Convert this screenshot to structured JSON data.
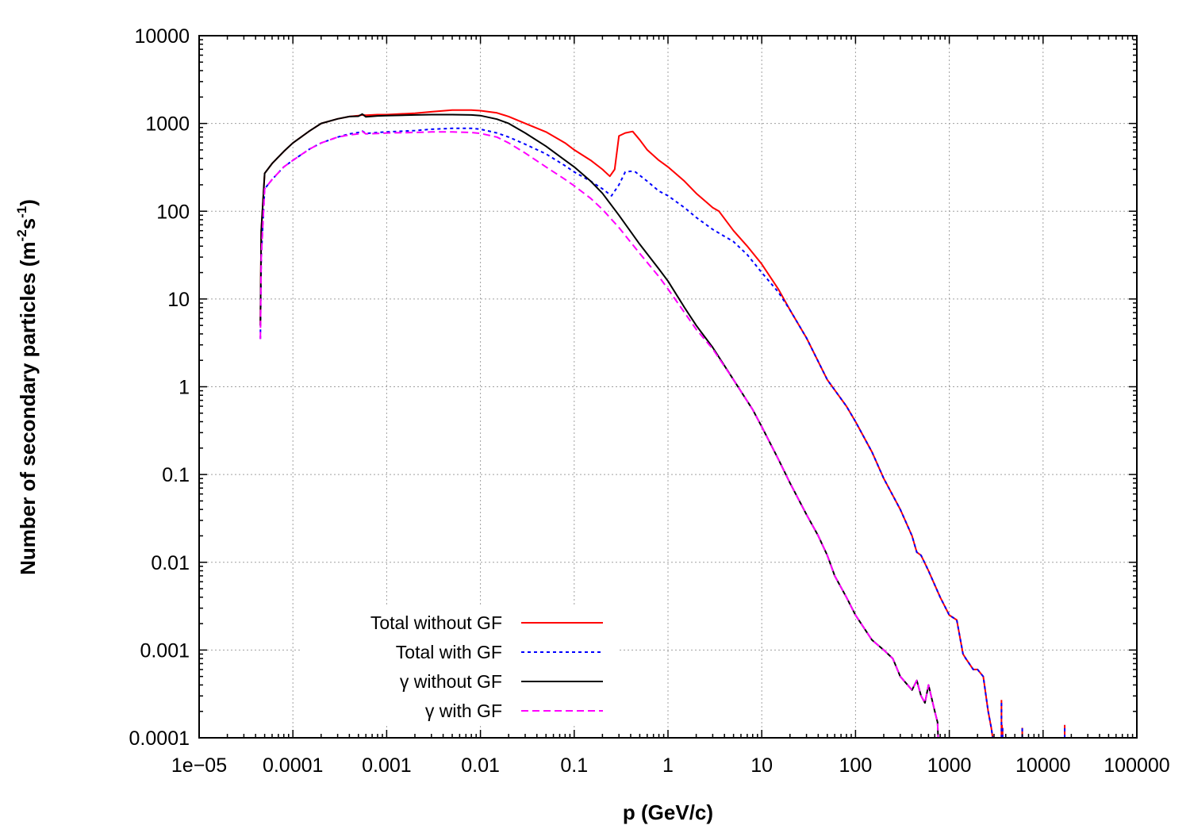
{
  "chart_data": {
    "type": "line",
    "xlabel": "p (GeV/c)",
    "ylabel": "Number of secondary particles",
    "ylabel_unit_parts": [
      " (m",
      "-2",
      "s",
      "-1",
      ")"
    ],
    "x_scale": "log",
    "y_scale": "log",
    "xlim": [
      1e-05,
      100000
    ],
    "ylim": [
      0.0001,
      10000
    ],
    "x_ticks": [
      1e-05,
      0.0001,
      0.001,
      0.01,
      0.1,
      1,
      10,
      100,
      1000,
      10000,
      100000
    ],
    "x_tick_labels": [
      "1e−05",
      "0.0001",
      "0.001",
      "0.01",
      "0.1",
      "1",
      "10",
      "100",
      "1000",
      "10000",
      "100000"
    ],
    "y_ticks": [
      0.0001,
      0.001,
      0.01,
      0.1,
      1,
      10,
      100,
      1000,
      10000
    ],
    "y_tick_labels": [
      "0.0001",
      "0.001",
      "0.01",
      "0.1",
      "1",
      "10",
      "100",
      "1000",
      "10000"
    ],
    "grid": true,
    "legend_position": "bottom-left",
    "series": [
      {
        "name": "Total without GF",
        "color": "#ff0000",
        "dash": "solid",
        "x": [
          4.5e-05,
          4.6e-05,
          5e-05,
          6e-05,
          8e-05,
          0.0001,
          0.00015,
          0.0002,
          0.0003,
          0.0004,
          0.0005,
          0.00055,
          0.0006,
          0.0008,
          0.001,
          0.002,
          0.003,
          0.005,
          0.008,
          0.01,
          0.015,
          0.02,
          0.03,
          0.05,
          0.08,
          0.1,
          0.15,
          0.2,
          0.24,
          0.27,
          0.3,
          0.35,
          0.42,
          0.5,
          0.6,
          0.8,
          1,
          1.5,
          2,
          3,
          3.5,
          5,
          7,
          10,
          15,
          20,
          30,
          50,
          80,
          100,
          150,
          200,
          300,
          400,
          450,
          500,
          600,
          800,
          1000,
          1200,
          1400,
          1500,
          1800,
          2000,
          2300,
          2600,
          2800,
          2900
        ],
        "y": [
          5,
          60,
          270,
          350,
          480,
          600,
          820,
          1000,
          1130,
          1200,
          1230,
          1250,
          1240,
          1260,
          1260,
          1310,
          1360,
          1420,
          1420,
          1400,
          1320,
          1200,
          1000,
          800,
          600,
          500,
          380,
          300,
          250,
          300,
          720,
          780,
          810,
          650,
          500,
          380,
          320,
          220,
          160,
          110,
          100,
          60,
          40,
          25,
          13,
          7.5,
          3.6,
          1.2,
          0.6,
          0.4,
          0.18,
          0.09,
          0.04,
          0.02,
          0.013,
          0.012,
          0.008,
          0.004,
          0.0025,
          0.0022,
          0.0009,
          0.0008,
          0.0006,
          0.0006,
          0.0005,
          0.0002,
          0.00013,
          0.0001
        ]
      },
      {
        "name": "Total with GF",
        "color": "#0000ff",
        "dash": "dotted",
        "x": [
          4.5e-05,
          4.6e-05,
          5e-05,
          6e-05,
          8e-05,
          0.0001,
          0.00015,
          0.0002,
          0.0003,
          0.0004,
          0.0005,
          0.00055,
          0.0006,
          0.0008,
          0.001,
          0.002,
          0.003,
          0.005,
          0.008,
          0.01,
          0.015,
          0.02,
          0.03,
          0.05,
          0.08,
          0.1,
          0.15,
          0.2,
          0.25,
          0.3,
          0.35,
          0.4,
          0.45,
          0.6,
          0.8,
          1,
          1.5,
          2,
          3,
          5,
          7,
          10,
          15,
          20,
          30,
          50,
          80,
          100,
          150,
          200,
          300,
          400,
          450,
          500,
          600,
          800,
          1000,
          1200,
          1400,
          1500,
          1800,
          2000,
          2300,
          2600,
          2800,
          2900
        ],
        "y": [
          3.5,
          30,
          180,
          230,
          320,
          380,
          510,
          600,
          700,
          760,
          790,
          820,
          770,
          790,
          800,
          830,
          860,
          880,
          880,
          860,
          780,
          700,
          580,
          450,
          330,
          280,
          220,
          180,
          150,
          200,
          280,
          285,
          280,
          220,
          170,
          150,
          110,
          85,
          62,
          45,
          32,
          20,
          12,
          7.5,
          3.6,
          1.2,
          0.6,
          0.4,
          0.18,
          0.09,
          0.04,
          0.02,
          0.013,
          0.012,
          0.008,
          0.004,
          0.0025,
          0.0022,
          0.0009,
          0.0008,
          0.0006,
          0.0006,
          0.0005,
          0.0002,
          0.00013,
          0.0001
        ]
      },
      {
        "name": "γ without GF",
        "color": "#000000",
        "dash": "solid",
        "x": [
          4.5e-05,
          4.6e-05,
          5e-05,
          6e-05,
          8e-05,
          0.0001,
          0.00015,
          0.0002,
          0.0003,
          0.0004,
          0.0005,
          0.00055,
          0.0006,
          0.0008,
          0.001,
          0.002,
          0.003,
          0.005,
          0.008,
          0.01,
          0.015,
          0.02,
          0.03,
          0.05,
          0.08,
          0.1,
          0.15,
          0.2,
          0.3,
          0.5,
          0.8,
          1,
          1.5,
          2,
          3,
          5,
          8,
          10,
          15,
          20,
          30,
          40,
          50,
          60,
          80,
          100,
          150,
          200,
          250,
          300,
          400,
          450,
          500,
          550,
          600,
          700,
          750,
          760
        ],
        "y": [
          5,
          60,
          270,
          350,
          480,
          600,
          820,
          1000,
          1130,
          1200,
          1210,
          1280,
          1190,
          1220,
          1230,
          1250,
          1260,
          1260,
          1250,
          1230,
          1120,
          1000,
          780,
          550,
          380,
          320,
          220,
          160,
          90,
          42,
          22,
          16,
          8,
          5,
          2.8,
          1.2,
          0.55,
          0.35,
          0.15,
          0.08,
          0.035,
          0.02,
          0.012,
          0.007,
          0.004,
          0.0025,
          0.0013,
          0.001,
          0.0008,
          0.0005,
          0.00035,
          0.00045,
          0.0003,
          0.00025,
          0.0004,
          0.0002,
          0.00015,
          0.0001
        ]
      },
      {
        "name": "γ with GF",
        "color": "#ff00ff",
        "dash": "dashed",
        "x": [
          4.5e-05,
          4.6e-05,
          5e-05,
          6e-05,
          8e-05,
          0.0001,
          0.00015,
          0.0002,
          0.0003,
          0.0004,
          0.0005,
          0.00055,
          0.0006,
          0.0008,
          0.001,
          0.002,
          0.003,
          0.005,
          0.008,
          0.01,
          0.015,
          0.02,
          0.03,
          0.05,
          0.08,
          0.1,
          0.15,
          0.2,
          0.3,
          0.5,
          0.8,
          1,
          1.5,
          2,
          3,
          5,
          8,
          10,
          15,
          20,
          30,
          40,
          50,
          60,
          80,
          100,
          150,
          200,
          250,
          300,
          400,
          450,
          500,
          550,
          600,
          700,
          750,
          760
        ],
        "y": [
          3.5,
          30,
          180,
          230,
          320,
          380,
          510,
          600,
          700,
          740,
          760,
          810,
          760,
          770,
          780,
          790,
          800,
          800,
          790,
          770,
          700,
          600,
          460,
          320,
          230,
          195,
          140,
          105,
          65,
          33,
          18,
          13,
          7,
          4.5,
          2.7,
          1.2,
          0.55,
          0.35,
          0.15,
          0.08,
          0.035,
          0.02,
          0.012,
          0.007,
          0.004,
          0.0025,
          0.0013,
          0.001,
          0.0008,
          0.0005,
          0.00035,
          0.00045,
          0.0003,
          0.00025,
          0.0004,
          0.0002,
          0.00015,
          0.0001
        ]
      }
    ],
    "tail_spikes": {
      "x": [
        3600,
        3650,
        3700,
        6000,
        17000
      ],
      "y": [
        0.00027,
        0.00014,
        0.00013,
        0.00013,
        0.00014
      ]
    }
  }
}
